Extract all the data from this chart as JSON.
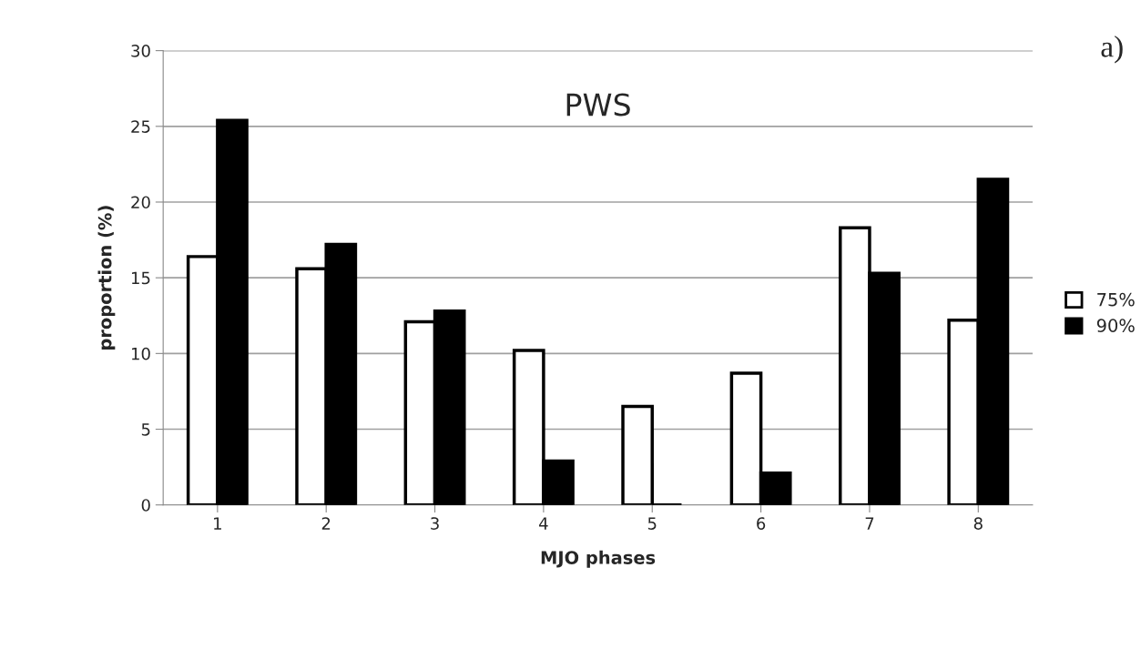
{
  "chart_data": {
    "type": "bar",
    "title": "PWS",
    "xlabel": "MJO phases",
    "ylabel": "proportion (%)",
    "categories": [
      "1",
      "2",
      "3",
      "4",
      "5",
      "6",
      "7",
      "8"
    ],
    "series": [
      {
        "name": "75%",
        "color": "#ffffff",
        "values": [
          16.4,
          15.6,
          12.1,
          10.2,
          6.5,
          8.7,
          18.3,
          12.2
        ]
      },
      {
        "name": "90%",
        "color": "#000000",
        "values": [
          25.4,
          17.2,
          12.8,
          2.9,
          0,
          2.1,
          15.3,
          21.5
        ]
      }
    ],
    "ylim": [
      0,
      30
    ],
    "yticks": [
      0,
      5,
      10,
      15,
      20,
      25,
      30
    ],
    "grid": "y",
    "legend": "right",
    "annotations": [
      "a)"
    ]
  }
}
